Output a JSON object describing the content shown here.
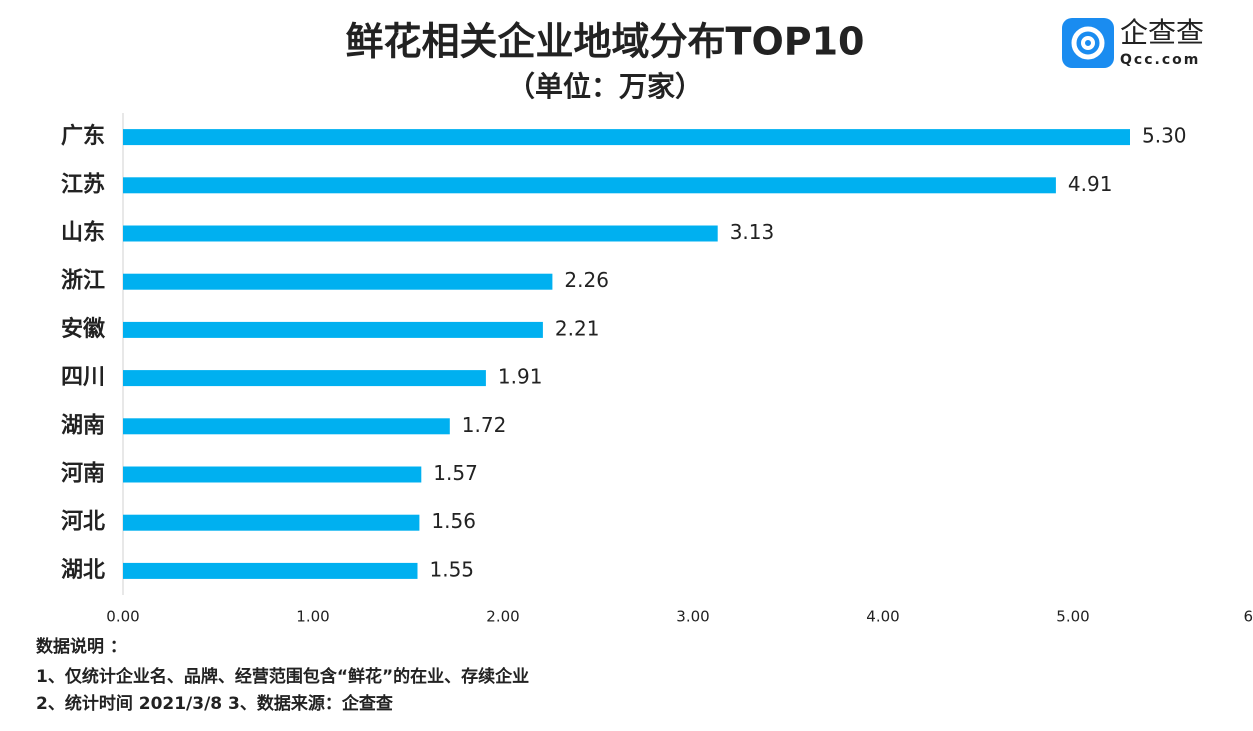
{
  "chart_data": {
    "type": "bar",
    "orientation": "horizontal",
    "title": "鲜花相关企业地域分布TOP10",
    "subtitle": "（单位：万家）",
    "categories": [
      "广东",
      "江苏",
      "山东",
      "浙江",
      "安徽",
      "四川",
      "湖南",
      "河南",
      "河北",
      "湖北"
    ],
    "values": [
      5.3,
      4.91,
      3.13,
      2.26,
      2.21,
      1.91,
      1.72,
      1.57,
      1.56,
      1.55
    ],
    "value_labels": [
      "5.30",
      "4.91",
      "3.13",
      "2.26",
      "2.21",
      "1.91",
      "1.72",
      "1.57",
      "1.56",
      "1.55"
    ],
    "color": "#00b0f0",
    "xlim": [
      0,
      6
    ],
    "xticks": [
      {
        "value": 0,
        "label": "0.00"
      },
      {
        "value": 1,
        "label": "1.00"
      },
      {
        "value": 2,
        "label": "2.00"
      },
      {
        "value": 3,
        "label": "3.00"
      },
      {
        "value": 4,
        "label": "4.00"
      },
      {
        "value": 5,
        "label": "5.00"
      },
      {
        "value": 6,
        "label": "6"
      }
    ],
    "grid": false
  },
  "notes": [
    "数据说明 ：",
    "1、仅统计企业名、品牌、经营范围包含“鲜花”的在业、存续企业",
    "2、统计时间 2021/3/8   3、数据来源：企查查"
  ],
  "logo": {
    "name": "企查查",
    "url": "Qcc.com"
  }
}
